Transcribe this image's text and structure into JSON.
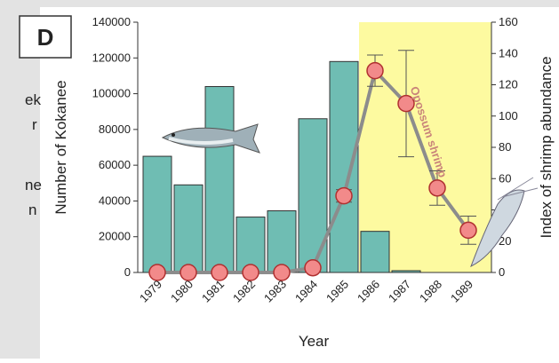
{
  "panel_label": "D",
  "side_panel": [
    "ek",
    "r",
    "ne",
    "n"
  ],
  "chart_data": {
    "type": "bar",
    "x_label": "Year",
    "y_label": "Number of Kokanee",
    "y2_label": "Index of shrimp abundance",
    "annotation": "Opossum shrimp",
    "categories": [
      "1979",
      "1980",
      "1981",
      "1982",
      "1983",
      "1984",
      "1985",
      "1986",
      "1987",
      "1988",
      "1989"
    ],
    "series": [
      {
        "name": "Kokanee",
        "type": "bar",
        "color": "#6fbdb3",
        "values": [
          65000,
          49000,
          104000,
          31000,
          34500,
          86000,
          118000,
          23000,
          1000,
          null,
          null
        ]
      },
      {
        "name": "Shrimp",
        "type": "line",
        "axis": "y2",
        "color": "#f28a8a",
        "line_color": "#8c8c8c",
        "values": [
          0,
          0,
          0,
          0,
          0,
          3,
          49,
          129,
          108,
          54,
          27
        ],
        "errors": [
          null,
          null,
          null,
          null,
          null,
          null,
          4,
          10,
          34,
          11,
          9
        ]
      }
    ],
    "ylim": [
      0,
      140000
    ],
    "yticks": [
      0,
      20000,
      40000,
      60000,
      80000,
      100000,
      120000,
      140000
    ],
    "y2lim": [
      0,
      160
    ],
    "y2ticks": [
      0,
      20,
      40,
      60,
      80,
      100,
      120,
      140,
      160
    ]
  }
}
